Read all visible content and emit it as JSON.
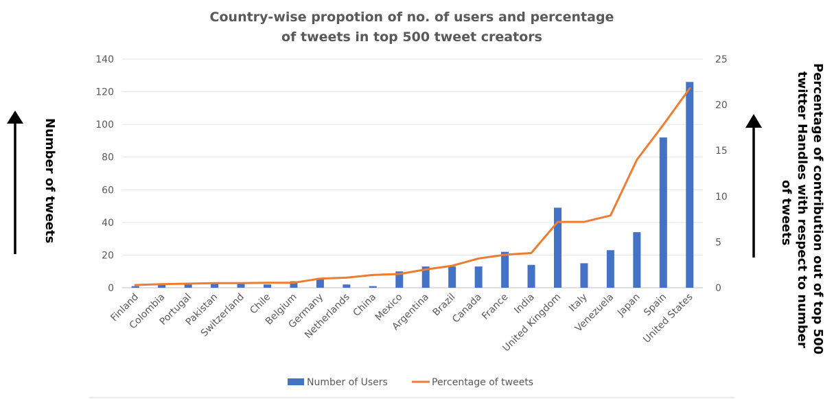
{
  "chart_data": {
    "type": "bar",
    "title": "Country-wise propotion of no. of users and percentage of tweets in top 500 tweet creators",
    "title_lines": [
      "Country-wise propotion of no. of users and percentage",
      "of tweets in top 500 tweet creators"
    ],
    "categories": [
      "Finland",
      "Colombia",
      "Portugal",
      "Pakistan",
      "Switzerland",
      "Chile",
      "Belgium",
      "Germany",
      "Netherlands",
      "China",
      "Mexico",
      "Argentina",
      "Brazil",
      "Canada",
      "France",
      "India",
      "United Kingdom",
      "Italy",
      "Venezuela",
      "Japan",
      "Spain",
      "United States"
    ],
    "series": [
      {
        "name": "Number of Users",
        "type": "bar",
        "axis": "left",
        "color": "#4472C4",
        "values": [
          1,
          2,
          2,
          3,
          3,
          2,
          4,
          6,
          2,
          1,
          10,
          13,
          13,
          13,
          22,
          14,
          49,
          15,
          23,
          34,
          92,
          126
        ]
      },
      {
        "name": "Percentage of tweets",
        "type": "line",
        "axis": "right",
        "color": "#ED7D31",
        "values": [
          0.3,
          0.4,
          0.45,
          0.5,
          0.5,
          0.55,
          0.55,
          1.0,
          1.1,
          1.4,
          1.5,
          2.0,
          2.4,
          3.2,
          3.6,
          3.8,
          7.2,
          7.2,
          7.9,
          14.0,
          17.8,
          21.8
        ]
      }
    ],
    "ylabel": "Number of tweets",
    "y2label_lines": [
      "Percentage of contribution  out of top 500",
      "twitter Handles with respect to number",
      "of tweets"
    ],
    "ylim": [
      0,
      140
    ],
    "y2lim": [
      0,
      25
    ],
    "yticks": [
      0,
      20,
      40,
      60,
      80,
      100,
      120,
      140
    ],
    "y2ticks": [
      0,
      5,
      10,
      15,
      20,
      25
    ],
    "grid": true,
    "legend": "bottom"
  }
}
